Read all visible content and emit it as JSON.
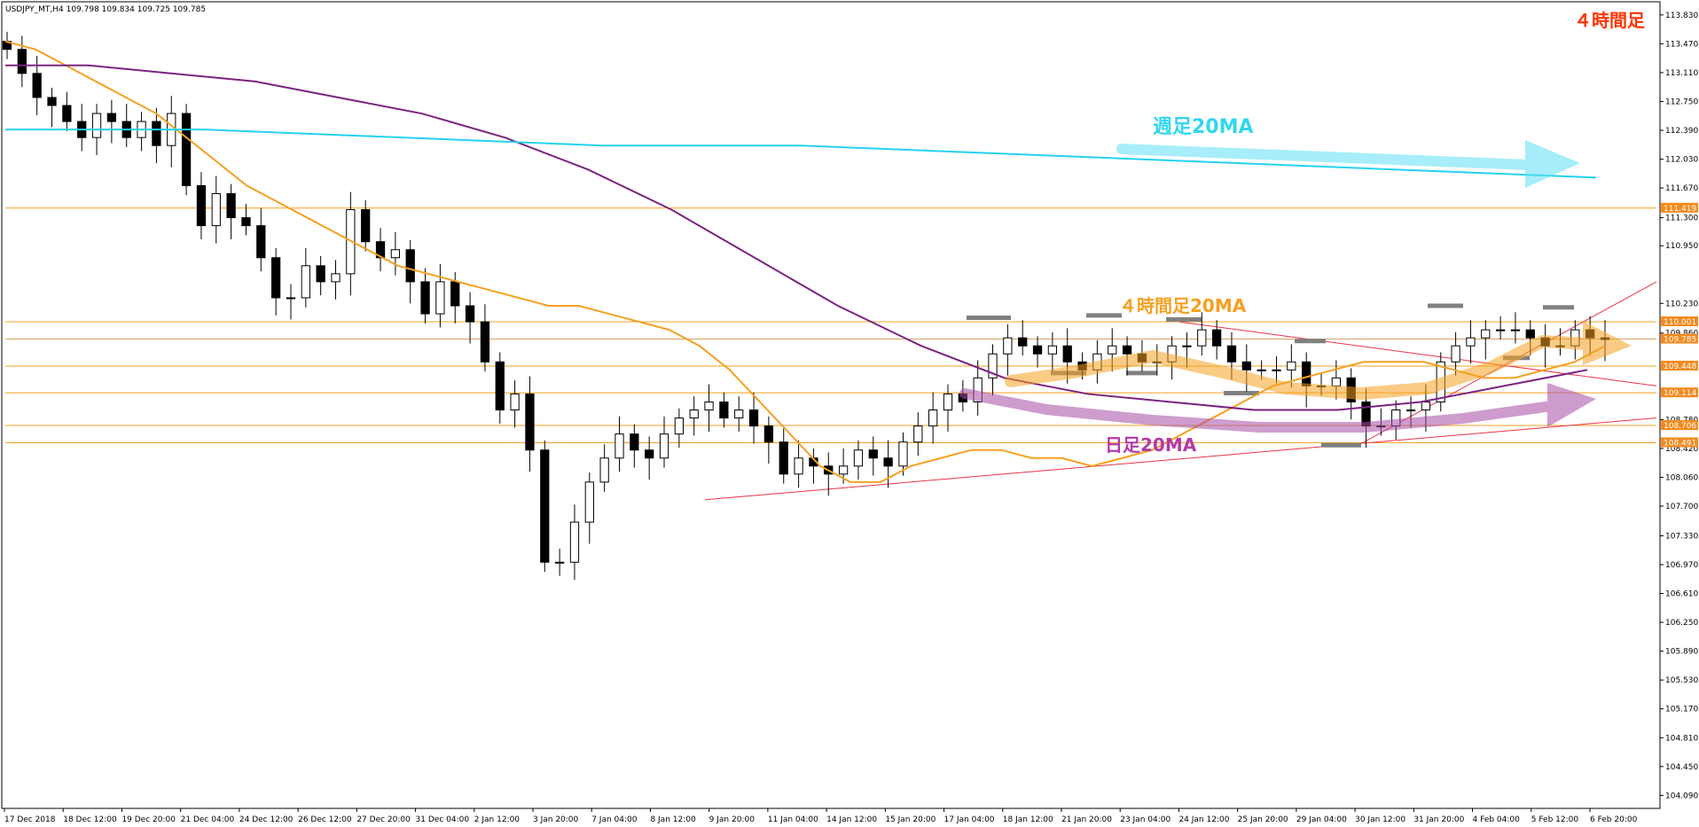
{
  "chart_data": {
    "type": "candlestick",
    "symbol_header": "USDJPY_MT,H4  109.798 109.834 109.725 109.785",
    "timeframe_label": "４時間足",
    "y_axis": {
      "side": "right",
      "ylim": [
        103.95,
        113.95
      ],
      "tick_labels": [
        "113.830",
        "113.470",
        "113.110",
        "112.750",
        "112.390",
        "112.030",
        "111.670",
        "111.300",
        "110.950",
        "110.230",
        "109.860",
        "108.780",
        "108.420",
        "108.060",
        "107.700",
        "107.330",
        "106.970",
        "106.610",
        "106.250",
        "105.890",
        "105.530",
        "105.170",
        "104.810",
        "104.450",
        "104.090"
      ]
    },
    "x_axis": {
      "tick_labels": [
        "17 Dec 2018",
        "18 Dec 12:00",
        "19 Dec 20:00",
        "21 Dec 04:00",
        "24 Dec 12:00",
        "26 Dec 12:00",
        "27 Dec 20:00",
        "31 Dec 04:00",
        "2 Jan 12:00",
        "3 Jan 20:00",
        "7 Jan 04:00",
        "8 Jan 12:00",
        "9 Jan 20:00",
        "11 Jan 04:00",
        "14 Jan 12:00",
        "15 Jan 20:00",
        "17 Jan 04:00",
        "18 Jan 12:00",
        "21 Jan 20:00",
        "23 Jan 04:00",
        "24 Jan 12:00",
        "25 Jan 20:00",
        "29 Jan 04:00",
        "30 Jan 12:00",
        "31 Jan 20:00",
        "4 Feb 04:00",
        "5 Feb 12:00",
        "6 Feb 20:00"
      ]
    },
    "price_lines": [
      {
        "price": 111.419,
        "label": "111.419",
        "highlight": true
      },
      {
        "price": 110.001,
        "label": "110.001",
        "highlight": true
      },
      {
        "price": 109.785,
        "label": "109.785",
        "highlight": true,
        "current": true
      },
      {
        "price": 109.448,
        "label": "109.448",
        "highlight": true
      },
      {
        "price": 109.114,
        "label": "109.114",
        "highlight": true
      },
      {
        "price": 108.706,
        "label": "108.706",
        "highlight": true
      },
      {
        "price": 108.491,
        "label": "108.491",
        "highlight": true
      }
    ],
    "annotations": [
      {
        "text": "週足20MA",
        "color": "#33d6f0"
      },
      {
        "text": "４時間足20MA",
        "color": "#f5a020"
      },
      {
        "text": "日足20MA",
        "color": "#b23aa8"
      }
    ],
    "series": [
      {
        "type": "candles",
        "open": [
          113.5,
          113.4,
          113.1,
          112.8,
          112.7,
          112.5,
          112.3,
          112.6,
          112.5,
          112.3,
          112.5,
          112.2,
          112.6,
          111.7,
          111.2,
          111.6,
          111.3,
          111.2,
          110.8,
          110.3,
          110.3,
          110.7,
          110.5,
          110.6,
          111.4,
          111.0,
          110.8,
          110.9,
          110.5,
          110.1,
          110.5,
          110.2,
          110.0,
          109.5,
          108.9,
          109.1,
          108.4,
          107.0,
          107.0,
          107.5,
          108.0,
          108.3,
          108.6,
          108.4,
          108.3,
          108.6,
          108.8,
          108.9,
          109.0,
          108.8,
          108.9,
          108.7,
          108.5,
          108.1,
          108.3,
          108.2,
          108.1,
          108.2,
          108.4,
          108.3,
          108.2,
          108.5,
          108.7,
          108.9,
          109.1,
          109.0,
          109.3,
          109.6,
          109.8,
          109.7,
          109.6,
          109.7,
          109.5,
          109.4,
          109.6,
          109.7,
          109.6,
          109.5,
          109.5,
          109.7,
          109.7,
          109.9,
          109.7,
          109.5,
          109.4,
          109.4,
          109.4,
          109.5,
          109.2,
          109.2,
          109.3,
          109.0,
          108.7,
          108.7,
          108.9,
          108.9,
          109.0,
          109.5,
          109.7,
          109.8,
          109.9,
          109.9,
          109.9,
          109.8,
          109.7,
          109.7,
          109.9,
          109.8
        ],
        "close": [
          113.4,
          113.1,
          112.8,
          112.7,
          112.5,
          112.3,
          112.6,
          112.5,
          112.3,
          112.5,
          112.2,
          112.6,
          111.7,
          111.2,
          111.6,
          111.3,
          111.2,
          110.8,
          110.3,
          110.3,
          110.7,
          110.5,
          110.6,
          111.4,
          111.0,
          110.8,
          110.9,
          110.5,
          110.1,
          110.5,
          110.2,
          110.0,
          109.5,
          108.9,
          109.1,
          108.4,
          107.0,
          107.0,
          107.5,
          108.0,
          108.3,
          108.6,
          108.4,
          108.3,
          108.6,
          108.8,
          108.9,
          109.0,
          108.8,
          108.9,
          108.7,
          108.5,
          108.1,
          108.3,
          108.2,
          108.1,
          108.2,
          108.4,
          108.3,
          108.2,
          108.5,
          108.7,
          108.9,
          109.1,
          109.0,
          109.3,
          109.6,
          109.8,
          109.7,
          109.6,
          109.7,
          109.5,
          109.4,
          109.6,
          109.7,
          109.6,
          109.5,
          109.5,
          109.7,
          109.7,
          109.9,
          109.7,
          109.5,
          109.4,
          109.4,
          109.4,
          109.5,
          109.2,
          109.2,
          109.3,
          109.0,
          108.7,
          108.7,
          108.9,
          108.9,
          109.0,
          109.5,
          109.7,
          109.8,
          109.9,
          109.9,
          109.9,
          109.8,
          109.7,
          109.7,
          109.9,
          109.8,
          109.78
        ]
      },
      {
        "type": "ma",
        "name": "",
        "color": "#f5a020",
        "values": [
          113.5,
          113.4,
          113.2,
          113.0,
          112.8,
          112.6,
          112.3,
          112.0,
          111.7,
          111.5,
          111.3,
          111.1,
          110.9,
          110.7,
          110.6,
          110.5,
          110.4,
          110.3,
          110.2,
          110.2,
          110.1,
          110.0,
          109.9,
          109.7,
          109.4,
          109.0,
          108.6,
          108.2,
          108.0,
          108.0,
          108.2,
          108.3,
          108.4,
          108.4,
          108.3,
          108.3,
          108.2,
          108.3,
          108.4,
          108.6,
          108.8,
          109.0,
          109.2,
          109.3,
          109.4,
          109.5,
          109.5,
          109.5,
          109.4,
          109.3,
          109.3,
          109.4,
          109.5,
          109.7
        ]
      },
      {
        "type": "ma",
        "name": "",
        "color": "#7b2382",
        "values": [
          113.2,
          113.2,
          113.1,
          113.0,
          112.8,
          112.6,
          112.3,
          111.9,
          111.4,
          110.8,
          110.2,
          109.7,
          109.3,
          109.1,
          109.0,
          108.9,
          108.9,
          109.0,
          109.2,
          109.4
        ]
      },
      {
        "type": "ma",
        "name": "",
        "color": "#23d2f0",
        "values": [
          112.4,
          112.4,
          112.3,
          112.2,
          112.2,
          112.1,
          112.0,
          111.9,
          111.8
        ]
      }
    ]
  }
}
